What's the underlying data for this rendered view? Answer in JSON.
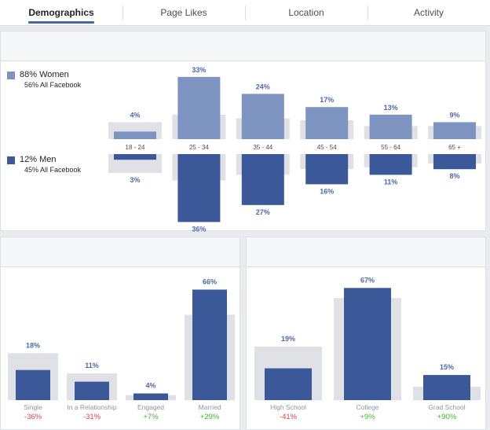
{
  "tabs": [
    {
      "label": "Demographics",
      "active": true
    },
    {
      "label": "Page Likes",
      "active": false
    },
    {
      "label": "Location",
      "active": false
    },
    {
      "label": "Activity",
      "active": false
    }
  ],
  "colors": {
    "women": "#7d93c0",
    "men": "#3b5998",
    "background_bar": "#dfe1e6",
    "positive": "#42b72a",
    "negative": "#e0464a",
    "label": "#4b6aa8"
  },
  "legend": {
    "women": {
      "label": "88% Women",
      "sub": "56% All Facebook"
    },
    "men": {
      "label": "12% Men",
      "sub": "45% All Facebook"
    }
  },
  "chart_data": [
    {
      "type": "bar",
      "name_key": "age_gender",
      "categories": [
        "18 - 24",
        "25 - 34",
        "35 - 44",
        "45 - 54",
        "55 - 64",
        "65 +"
      ],
      "series": [
        {
          "name": "Women",
          "values": [
            4,
            33,
            24,
            17,
            13,
            9
          ],
          "all_facebook": [
            9,
            13,
            11,
            10,
            7,
            7
          ]
        },
        {
          "name": "Men",
          "values": [
            3,
            36,
            27,
            16,
            11,
            8
          ],
          "all_facebook": [
            10,
            14,
            11,
            8,
            7,
            5
          ]
        }
      ],
      "value_labels_women": [
        "4%",
        "33%",
        "24%",
        "17%",
        "13%",
        "9%"
      ],
      "value_labels_men": [
        "3%",
        "36%",
        "27%",
        "16%",
        "11%",
        "8%"
      ]
    },
    {
      "type": "bar",
      "name_key": "relationship",
      "categories": [
        "Single",
        "In a Relationship",
        "Engaged",
        "Married"
      ],
      "values": [
        18,
        11,
        4,
        66
      ],
      "all_facebook": [
        28,
        16,
        3,
        51
      ],
      "value_labels": [
        "18%",
        "11%",
        "4%",
        "66%"
      ],
      "diff_labels": [
        "-36%",
        "-31%",
        "+7%",
        "+29%"
      ],
      "diff_sign": [
        "neg",
        "neg",
        "pos",
        "pos"
      ]
    },
    {
      "type": "bar",
      "name_key": "education",
      "categories": [
        "High School",
        "College",
        "Grad School"
      ],
      "values": [
        19,
        67,
        15
      ],
      "all_facebook": [
        32,
        61,
        8
      ],
      "value_labels": [
        "19%",
        "67%",
        "15%"
      ],
      "diff_labels": [
        "-41%",
        "+9%",
        "+90%"
      ],
      "diff_sign": [
        "neg",
        "pos",
        "pos"
      ]
    }
  ]
}
